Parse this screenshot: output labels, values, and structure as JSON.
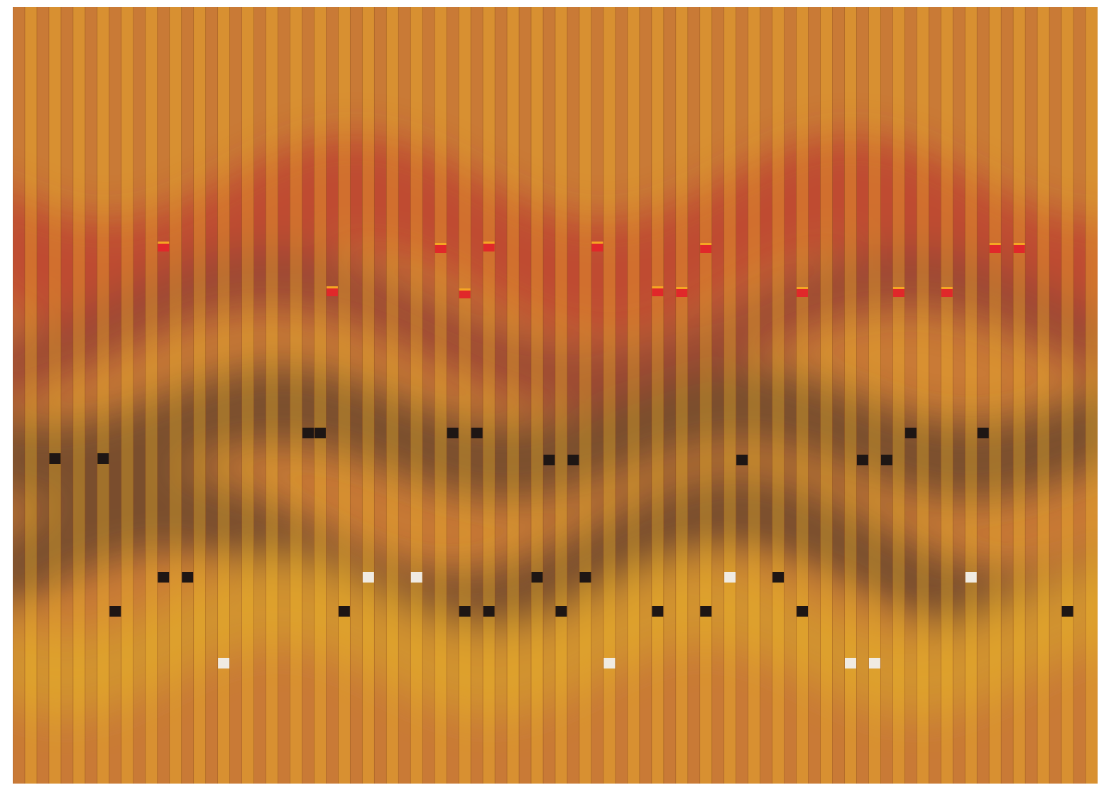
{
  "artwork": {
    "colors": {
      "ground": "#c97a36",
      "stripe_light": "#e3a32e",
      "stripe_yellow": "#d9a62a",
      "band_red": "#b8262e",
      "band_maroon": "#7a2432",
      "band_dark": "#3a2a26",
      "mark_black": "#1e1614",
      "mark_white": "#f0ebe2",
      "mark_red": "#e0282a",
      "mark_orange": "#f5a623"
    }
  }
}
